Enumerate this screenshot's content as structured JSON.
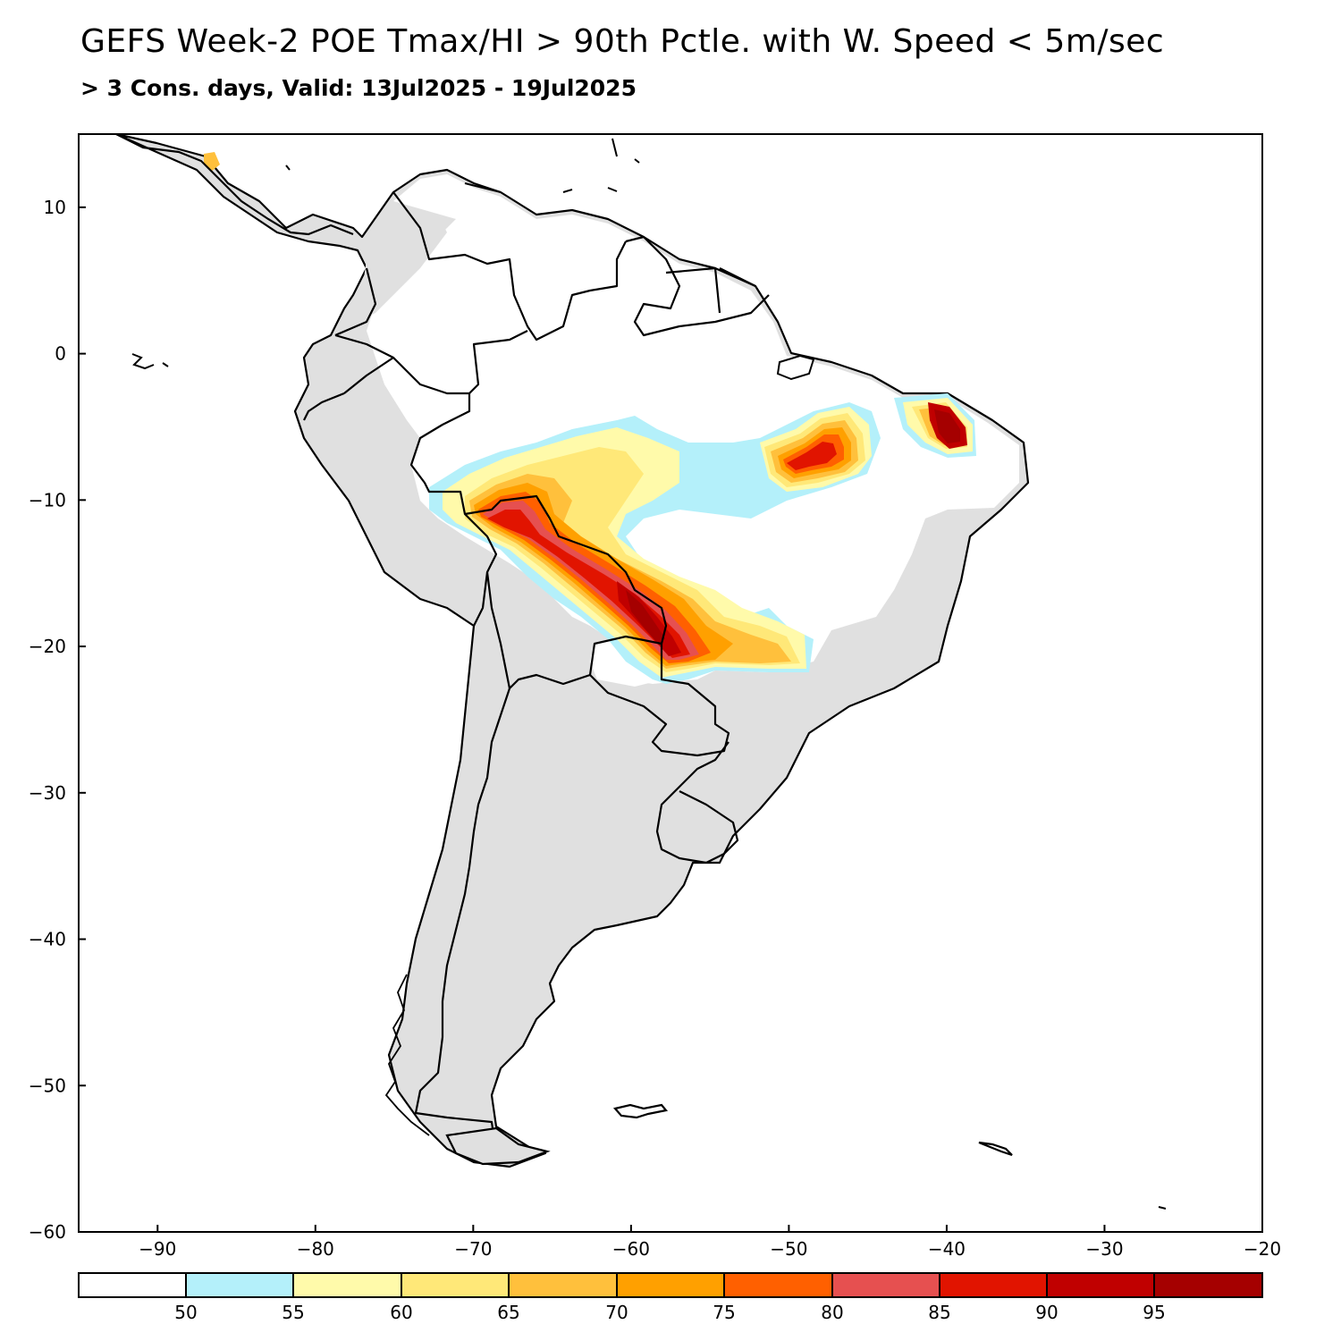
{
  "title": "GEFS Week-2 POE Tmax/HI > 90th Pctle. with W. Speed < 5m/sec",
  "subtitle": "> 3 Cons. days, Valid: 13Jul2025 - 19Jul2025",
  "map": {
    "region": "South America",
    "lon_range": [
      -95,
      -20
    ],
    "lat_range": [
      -60,
      15
    ],
    "x_ticks": [
      -90,
      -80,
      -70,
      -60,
      -50,
      -40,
      -30,
      -20
    ],
    "x_tick_labels": [
      "−90",
      "−80",
      "−70",
      "−60",
      "−50",
      "−40",
      "−30",
      "−20"
    ],
    "y_ticks": [
      10,
      0,
      -10,
      -20,
      -30,
      -40,
      -50,
      -60
    ],
    "y_tick_labels": [
      "10",
      "0",
      "−10",
      "−20",
      "−30",
      "−40",
      "−50",
      "−60"
    ],
    "land_no_data_color": "#e0e0e0",
    "coast_color": "#000000"
  },
  "colorbar": {
    "labels": [
      "50",
      "55",
      "60",
      "65",
      "70",
      "75",
      "80",
      "85",
      "90",
      "95"
    ],
    "colors": [
      "#ffffff",
      "#b4f0fa",
      "#fffaaa",
      "#ffe878",
      "#ffc03c",
      "#ffa000",
      "#ff6000",
      "#e65050",
      "#e11400",
      "#c00000",
      "#a50000"
    ]
  }
}
